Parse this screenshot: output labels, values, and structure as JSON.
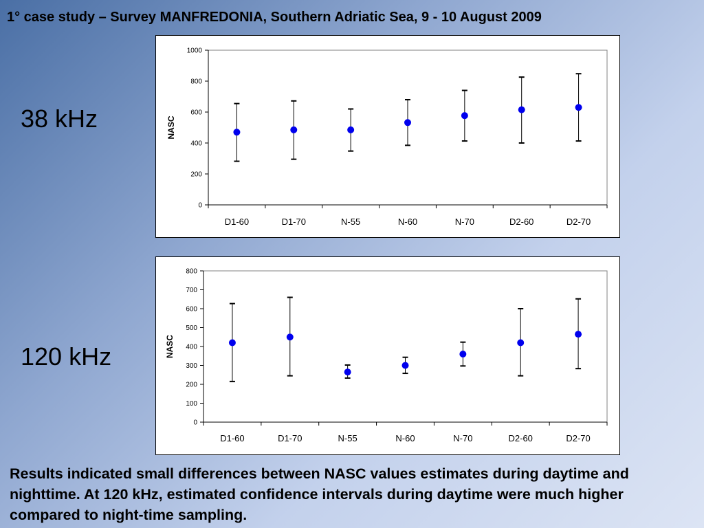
{
  "slide": {
    "title": "1° case study – Survey MANFREDONIA, Southern Adriatic Sea, 9 - 10 August 2009",
    "caption": "Results indicated small differences between NASC values estimates during daytime and nighttime. At 120 kHz, estimated confidence intervals during daytime were much higher compared to night-time sampling."
  },
  "chart_labels": [
    "38 kHz",
    "120 kHz"
  ],
  "chart_data": [
    {
      "type": "scatter",
      "label": "38 kHz",
      "categories": [
        "D1-60",
        "D1-70",
        "N-55",
        "N-60",
        "N-70",
        "D2-60",
        "D2-70"
      ],
      "values": [
        470,
        485,
        485,
        532,
        577,
        615,
        630
      ],
      "error_low": [
        282,
        295,
        348,
        385,
        413,
        400,
        413
      ],
      "error_high": [
        655,
        672,
        620,
        680,
        740,
        826,
        848
      ],
      "xlabel": "",
      "ylabel": "NASC",
      "ylim": [
        0,
        1000
      ],
      "yticks": [
        0,
        200,
        400,
        600,
        800,
        1000
      ],
      "grid": false,
      "marker_color": "#0000ee"
    },
    {
      "type": "scatter",
      "label": "120 kHz",
      "categories": [
        "D1-60",
        "D1-70",
        "N-55",
        "N-60",
        "N-70",
        "D2-60",
        "D2-70"
      ],
      "values": [
        420,
        450,
        265,
        300,
        360,
        420,
        465
      ],
      "error_low": [
        215,
        245,
        233,
        258,
        297,
        245,
        283
      ],
      "error_high": [
        627,
        660,
        302,
        343,
        423,
        600,
        652
      ],
      "xlabel": "",
      "ylabel": "NASC",
      "ylim": [
        0,
        800
      ],
      "yticks": [
        0,
        100,
        200,
        300,
        400,
        500,
        600,
        700,
        800
      ],
      "grid": false,
      "marker_color": "#0000ee"
    }
  ]
}
